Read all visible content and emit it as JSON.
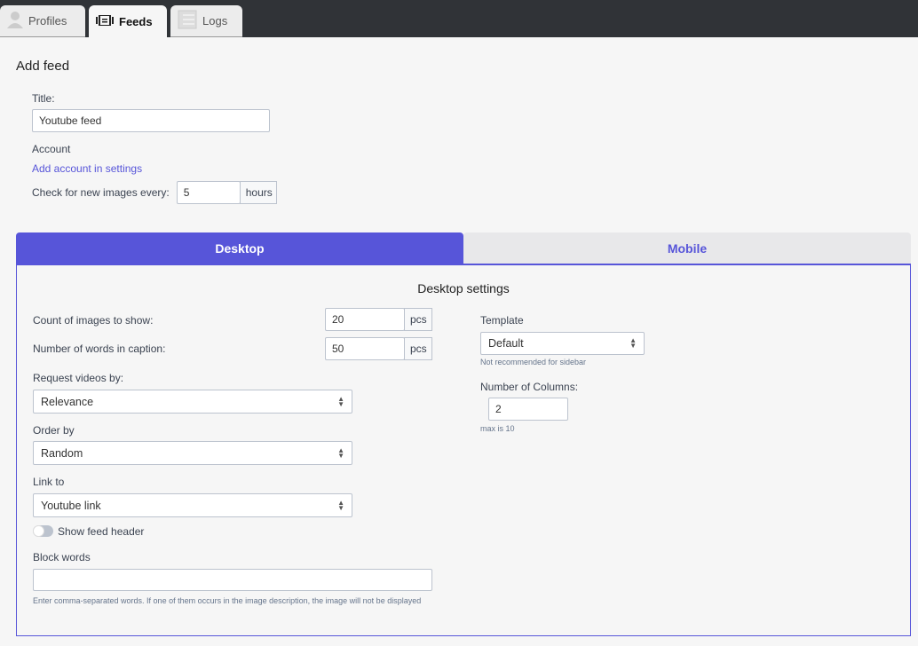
{
  "tabs": [
    {
      "label": "Profiles",
      "icon": "user-icon"
    },
    {
      "label": "Feeds",
      "icon": "feed-icon"
    },
    {
      "label": "Logs",
      "icon": "list-icon"
    }
  ],
  "page_title": "Add feed",
  "form": {
    "title_label": "Title:",
    "title_value": "Youtube feed",
    "account_label": "Account",
    "account_link": "Add account in settings",
    "check_label": "Check for new images every:",
    "check_value": "5",
    "check_unit": "hours"
  },
  "device_tabs": {
    "desktop": "Desktop",
    "mobile": "Mobile",
    "active": "Desktop"
  },
  "accent_color": "#5755d9",
  "settings": {
    "heading": "Desktop settings",
    "count_label": "Count of images to show:",
    "count_value": "20",
    "count_unit": "pcs",
    "words_label": "Number of words in caption:",
    "words_value": "50",
    "words_unit": "pcs",
    "request_label": "Request videos by:",
    "request_value": "Relevance",
    "order_label": "Order by",
    "order_value": "Random",
    "link_label": "Link to",
    "link_value": "Youtube link",
    "header_toggle_label": "Show feed header",
    "header_toggle_on": false,
    "block_label": "Block words",
    "block_value": "",
    "block_hint": "Enter comma-separated words. If one of them occurs in the image description, the image will not be displayed",
    "template_label": "Template",
    "template_value": "Default",
    "template_hint": "Not recommended for sidebar",
    "columns_label": "Number of Columns:",
    "columns_value": "2",
    "columns_hint": "max is 10"
  }
}
